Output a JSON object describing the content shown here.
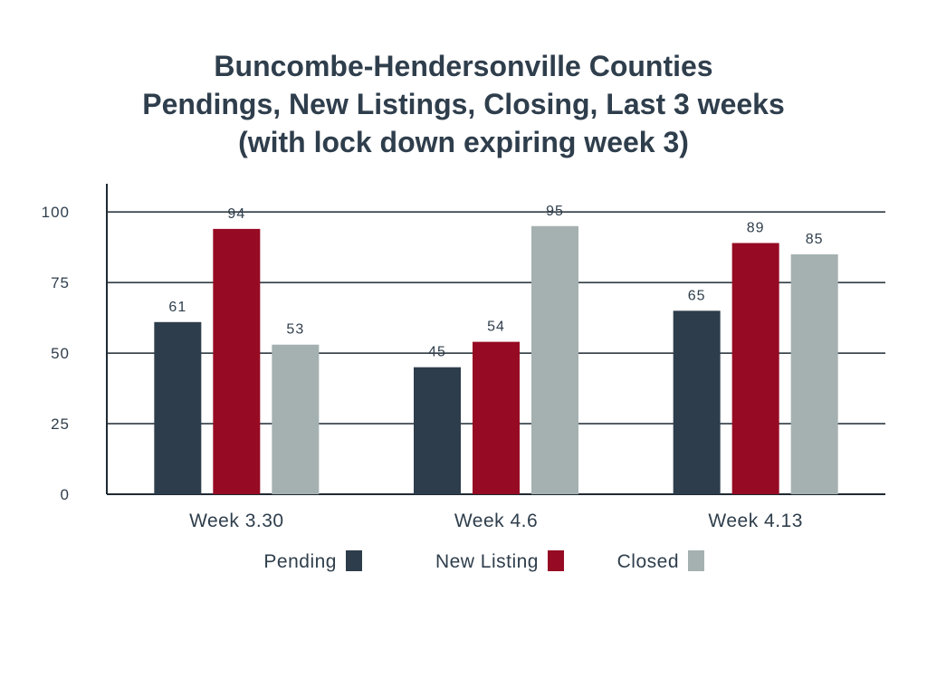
{
  "chart_data": {
    "type": "bar",
    "title": [
      "Buncombe-Hendersonville Counties",
      "Pendings, New Listings, Closing, Last 3 weeks",
      "(with lock down expiring week 3)"
    ],
    "categories": [
      "Week 3.30",
      "Week 4.6",
      "Week 4.13"
    ],
    "series": [
      {
        "name": "Pending",
        "color": "#2e3d4b",
        "values": [
          61,
          45,
          65
        ]
      },
      {
        "name": "New Listing",
        "color": "#960b23",
        "values": [
          94,
          54,
          89
        ]
      },
      {
        "name": "Closed",
        "color": "#a5b1b1",
        "values": [
          53,
          95,
          85
        ]
      }
    ],
    "y_ticks": [
      0,
      25,
      50,
      75,
      100
    ],
    "ylim": [
      0,
      110
    ],
    "grid": true,
    "legend_position": "bottom"
  }
}
